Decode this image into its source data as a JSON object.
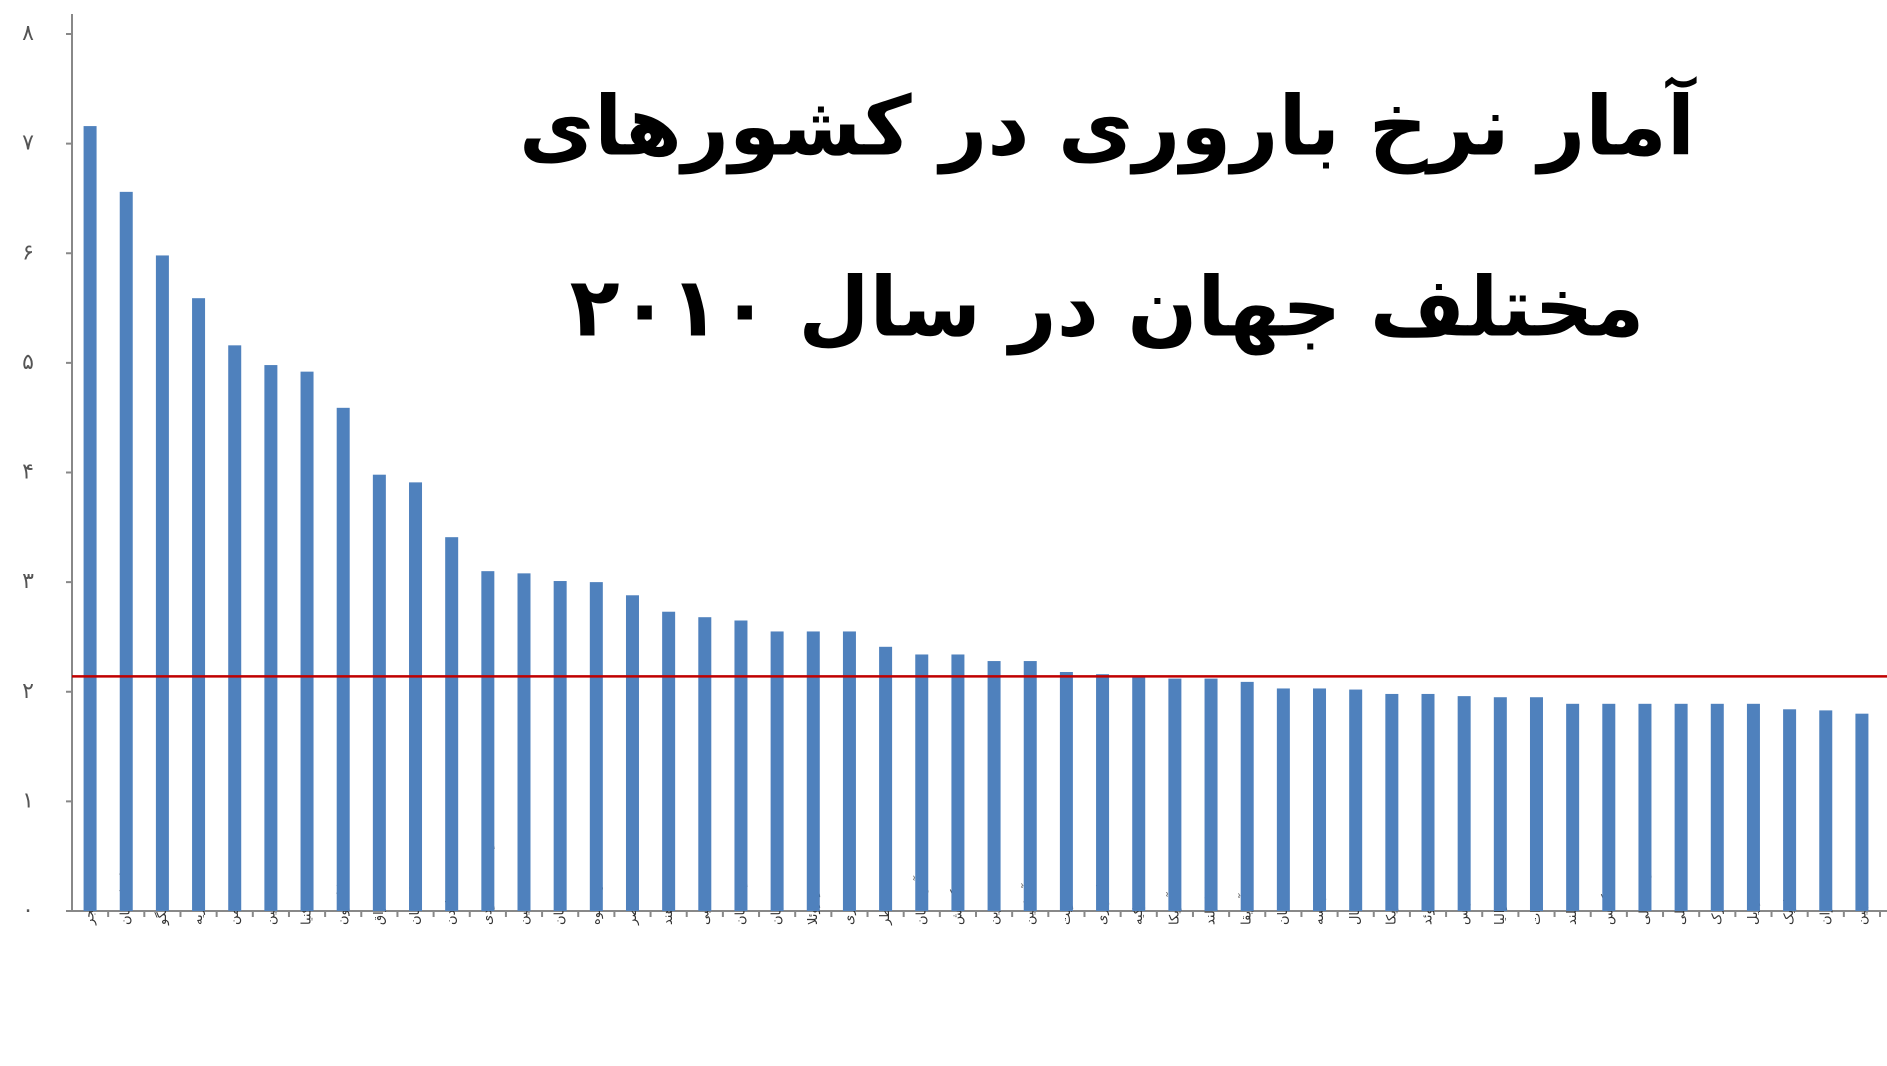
{
  "chart_data": {
    "type": "bar",
    "title_lines": [
      "آمار نرخ باروری در کشورهای",
      "مختلف جهان در سال ۲۰۱۰"
    ],
    "categories": [
      "نیجر",
      "افغانستان",
      "کنگو",
      "نیجریه",
      "یمن",
      "فلسطین",
      "کنیا",
      "کامرون",
      "عراق",
      "پاکستان",
      "اردن",
      "عربستان سعودی",
      "فیلیپین",
      "عمان",
      "زیمبابوه",
      "مصر",
      "هند",
      "لیبی",
      "قزاقستان",
      "جهان",
      "ونزوئلا",
      "مالزی",
      "قطر",
      "آذربایجان",
      "بنگلادش",
      "بحرین",
      "آرژانتین",
      "کویت",
      "اندونزی",
      "ترکیه",
      "آمریکا",
      "ایرلند",
      "آفریقا",
      "تاجیکستان",
      "فرانسه",
      "نپال",
      "کاستاریکا",
      "سوئد",
      "تونس",
      "استرالیا",
      "امارات",
      "هلند",
      "انگلیس",
      "کره شمالی",
      "شیلی",
      "دانمارک",
      "برزیل",
      "بلژیک",
      "ایران",
      "چین"
    ],
    "values": [
      7.16,
      6.56,
      5.98,
      5.59,
      5.16,
      4.98,
      4.92,
      4.59,
      3.98,
      3.91,
      3.41,
      3.1,
      3.08,
      3.01,
      3.0,
      2.88,
      2.73,
      2.68,
      2.65,
      2.55,
      2.55,
      2.55,
      2.41,
      2.34,
      2.34,
      2.28,
      2.28,
      2.18,
      2.16,
      2.14,
      2.12,
      2.12,
      2.09,
      2.03,
      2.03,
      2.02,
      1.98,
      1.98,
      1.96,
      1.95,
      1.95,
      1.89,
      1.89,
      1.89,
      1.89,
      1.89,
      1.89,
      1.84,
      1.83,
      1.8
    ],
    "color": "#4f81bd",
    "reference_line": {
      "value": 2.14,
      "color": "#c00000"
    },
    "ylim": [
      0,
      8
    ],
    "yticks": [
      {
        "value": 0,
        "label": "۰"
      },
      {
        "value": 1,
        "label": "۱"
      },
      {
        "value": 2,
        "label": "۲"
      },
      {
        "value": 3,
        "label": "۳"
      },
      {
        "value": 4,
        "label": "۴"
      },
      {
        "value": 5,
        "label": "۵"
      },
      {
        "value": 6,
        "label": "۶"
      },
      {
        "value": 7,
        "label": "۷"
      },
      {
        "value": 8,
        "label": "۸"
      }
    ],
    "grid": false
  }
}
